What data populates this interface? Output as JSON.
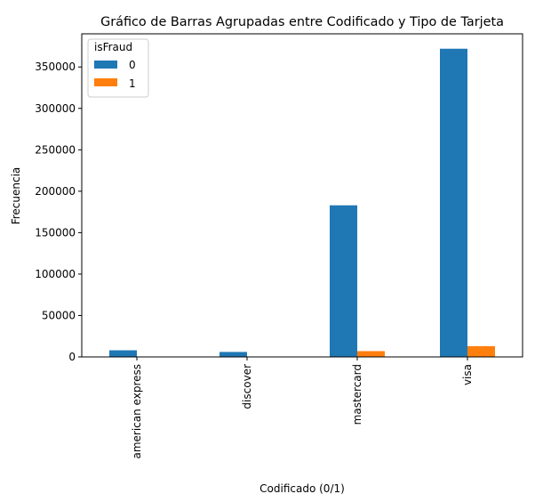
{
  "chart_data": {
    "type": "bar",
    "title": "Gráfico de Barras Agrupadas entre Codificado y Tipo de Tarjeta",
    "xlabel": "Codificado (0/1)",
    "ylabel": "Frecuencia",
    "categories": [
      "american express",
      "discover",
      "mastercard",
      "visa"
    ],
    "series": [
      {
        "name": "0",
        "color": "#1f77b4",
        "values": [
          8000,
          6000,
          183000,
          372000
        ]
      },
      {
        "name": "1",
        "color": "#ff7f0e",
        "values": [
          200,
          100,
          7000,
          13000
        ]
      }
    ],
    "ylim": [
      0,
      390000
    ],
    "yticks": [
      0,
      50000,
      100000,
      150000,
      200000,
      250000,
      300000,
      350000
    ],
    "ytick_labels": [
      "0",
      "50000",
      "100000",
      "150000",
      "200000",
      "250000",
      "300000",
      "350000"
    ],
    "legend": {
      "title": "isFraud",
      "position": "top-left"
    },
    "grid": false,
    "tick_label_rotation": "vertical"
  }
}
